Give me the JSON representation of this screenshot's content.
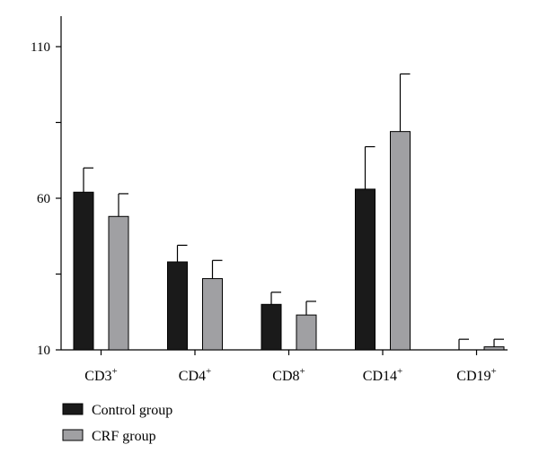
{
  "chart_data": {
    "type": "bar",
    "title": "",
    "xlabel": "",
    "ylabel": "",
    "ylim": [
      10,
      115
    ],
    "yticks_labeled": [
      10,
      60,
      110
    ],
    "yticks_minor": [
      35,
      85
    ],
    "categories": [
      {
        "base": "CD3",
        "sup": "+"
      },
      {
        "base": "CD4",
        "sup": "+"
      },
      {
        "base": "CD8",
        "sup": "+"
      },
      {
        "base": "CD14",
        "sup": "+"
      },
      {
        "base": "CD19",
        "sup": "+"
      }
    ],
    "series": [
      {
        "name": "Control group",
        "color": "#1a1a1a",
        "values": [
          62,
          39,
          25,
          63,
          10
        ],
        "errors": [
          8,
          5.5,
          4,
          14,
          3.5
        ]
      },
      {
        "name": "CRF group",
        "color": "#a0a0a3",
        "values": [
          54,
          33.5,
          21.5,
          82,
          11
        ],
        "errors": [
          7.5,
          6,
          4.5,
          19,
          2.5
        ]
      }
    ],
    "legend": {
      "position": "bottom-left"
    },
    "grid": false
  }
}
